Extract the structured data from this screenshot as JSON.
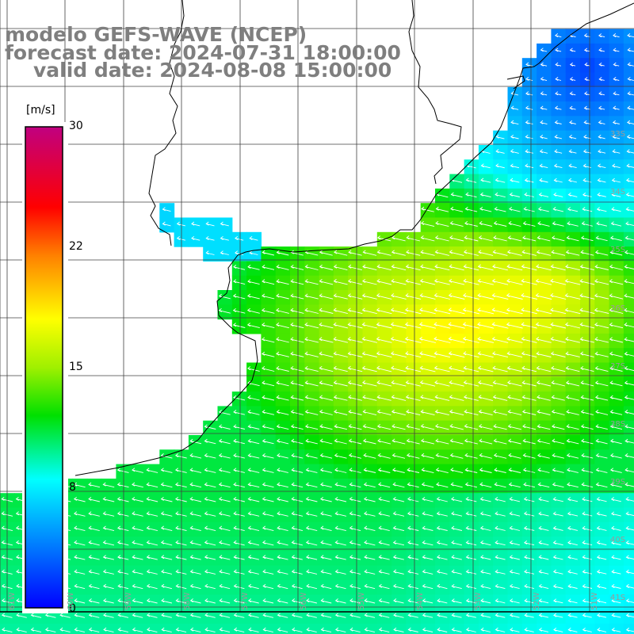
{
  "title": {
    "line1": "modelo GEFS-WAVE (NCEP)",
    "line2": "forecast date: 2024-07-31 18:00:00",
    "line3": "valid date: 2024-08-08 15:00:00"
  },
  "colorbar": {
    "unit": "[m/s]",
    "ticks": [
      "30",
      "22",
      "15",
      "8",
      "0"
    ],
    "tick_values": [
      30,
      22,
      15,
      8,
      0
    ],
    "range": [
      0,
      30
    ],
    "colors": [
      "#0000ff",
      "#00ffff",
      "#00e000",
      "#ffff00",
      "#ff8000",
      "#ff0000",
      "#c00080"
    ]
  },
  "lat_labels": [
    "33S",
    "34S",
    "35S",
    "36S",
    "37S",
    "38S",
    "39S",
    "40S",
    "41S"
  ],
  "lon_labels": [
    "61W",
    "60W",
    "59W",
    "58W",
    "57W",
    "56W",
    "55W",
    "54W",
    "53W",
    "52W",
    "51W"
  ],
  "map": {
    "field": "wind speed (m/s)",
    "arrows": "white",
    "coastline": "black",
    "land": "#ffffff"
  }
}
